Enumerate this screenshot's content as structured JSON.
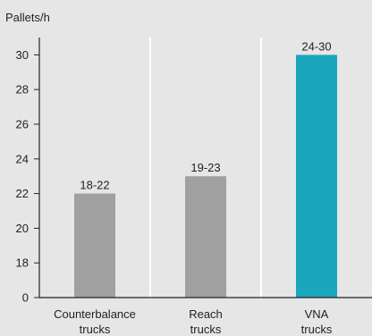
{
  "chart_data": {
    "type": "bar",
    "ylabel": "Pallets/h",
    "categories": [
      [
        "Counterbalance",
        "trucks"
      ],
      [
        "Reach",
        "trucks"
      ],
      [
        "VNA",
        "trucks"
      ]
    ],
    "values": [
      22,
      23,
      30
    ],
    "data_labels": [
      "18-22",
      "19-23",
      "24-30"
    ],
    "y_ticks": [
      "0",
      "18",
      "20",
      "22",
      "24",
      "26",
      "28",
      "30"
    ],
    "y_tick_values": [
      16,
      18,
      20,
      22,
      24,
      26,
      28,
      30
    ],
    "y_axis_break": "0 shown at bottom, axis broken from 0 to 18",
    "ylim": [
      16,
      31
    ],
    "grid": "vertical separators only",
    "bar_colors": [
      "#a0a0a0",
      "#a0a0a0",
      "#1aa6bd"
    ],
    "background_color": "#e6e6e6",
    "axis_color": "#222222",
    "gridline_color": "#ffffff"
  }
}
